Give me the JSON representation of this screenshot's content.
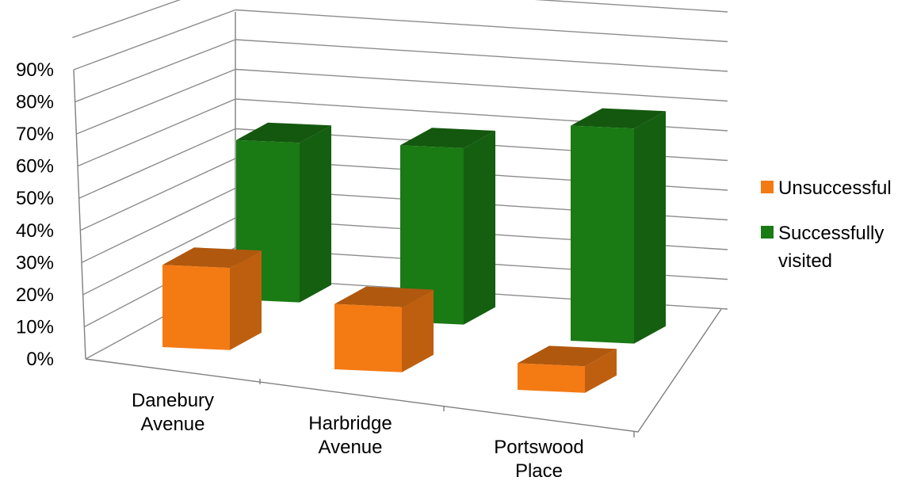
{
  "chart_data": {
    "type": "bar",
    "style": "3d-column",
    "categories": [
      "Danebury Avenue",
      "Harbridge Avenue",
      "Portswood Place"
    ],
    "category_lines": [
      [
        "Danebury",
        "Avenue"
      ],
      [
        "Harbridge",
        "Avenue"
      ],
      [
        "Portswood",
        "Place"
      ]
    ],
    "series": [
      {
        "name": "Unsuccessful",
        "values": [
          0.34,
          0.27,
          0.11
        ],
        "color": "#f47a14"
      },
      {
        "name": "Successfully visited",
        "values": [
          0.66,
          0.73,
          0.89
        ],
        "color": "#1a7a14"
      }
    ],
    "legend": [
      {
        "lines": [
          "Unsuccessful"
        ],
        "color": "#f47a14"
      },
      {
        "lines": [
          "Successfully",
          "visited"
        ],
        "color": "#1a7a14"
      }
    ],
    "yticks": [
      "0%",
      "10%",
      "20%",
      "30%",
      "40%",
      "50%",
      "60%",
      "70%",
      "80%",
      "90%"
    ],
    "ylim": [
      0,
      1
    ],
    "grid": true,
    "legend_position": "right"
  }
}
